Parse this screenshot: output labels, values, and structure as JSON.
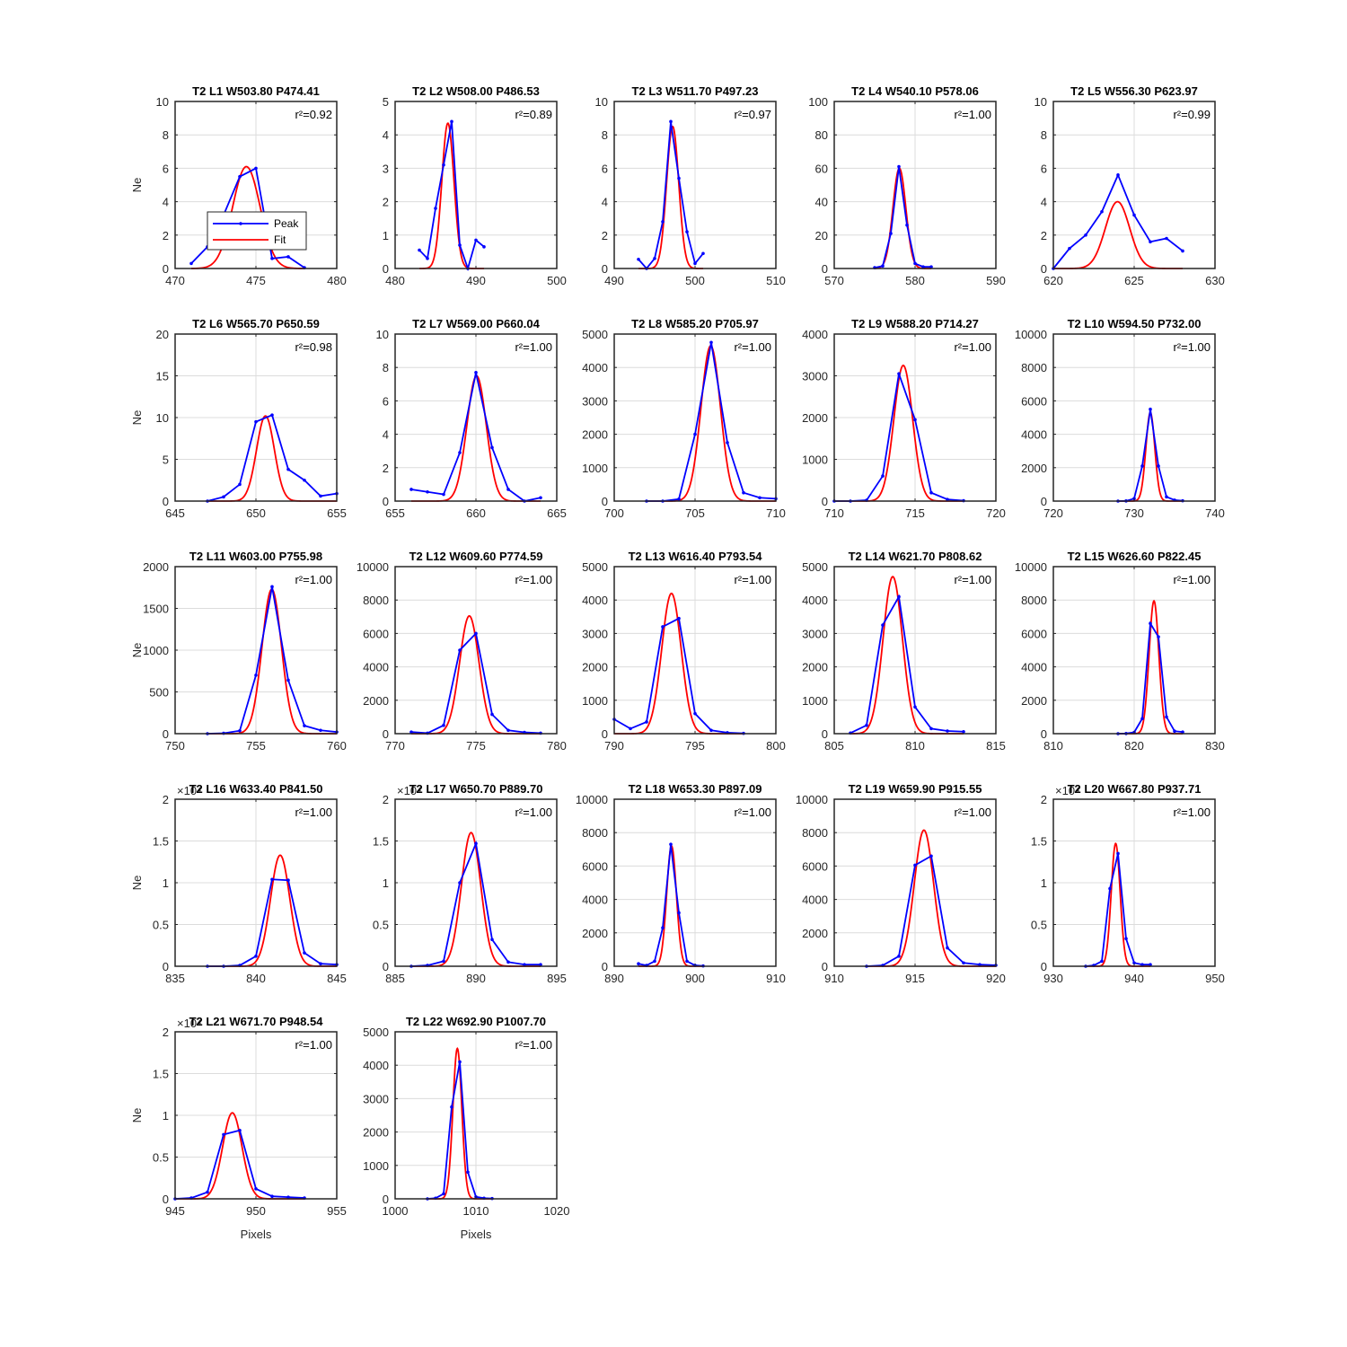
{
  "figure": {
    "background": "#ffffff"
  },
  "colors": {
    "peak": "#0000ff",
    "fit": "#ff0000",
    "grid": "#dcdcdc",
    "axes": "#262626"
  },
  "chart_data": [
    {
      "type": "line",
      "title": "T2 L1 W503.80 P474.41",
      "r2": "r²=0.92",
      "xlim": [
        470,
        480
      ],
      "ylim": [
        0,
        10
      ],
      "xticks": [
        470,
        475,
        480
      ],
      "yticks": [
        0,
        2,
        4,
        6,
        8,
        10
      ],
      "xlabel": "",
      "ylabel": "Ne",
      "exponent": "",
      "legend": {
        "position": "inside-left",
        "entries": [
          "Peak",
          "Fit"
        ]
      },
      "peak_x": [
        471,
        472,
        473,
        474,
        475,
        476,
        477,
        478
      ],
      "peak_y": [
        0.3,
        1.3,
        3.2,
        5.5,
        6.0,
        0.6,
        0.7,
        0.05
      ],
      "fit": {
        "amp": 6.1,
        "center": 474.41,
        "sigma": 0.85
      }
    },
    {
      "type": "line",
      "title": "T2 L2 W508.00 P486.53",
      "r2": "r²=0.89",
      "xlim": [
        480,
        500
      ],
      "ylim": [
        0,
        5
      ],
      "xticks": [
        480,
        490,
        500
      ],
      "yticks": [
        0,
        1,
        2,
        3,
        4,
        5
      ],
      "xlabel": "",
      "ylabel": "",
      "exponent": "",
      "peak_x": [
        483,
        484,
        485,
        486,
        487,
        488,
        489,
        490,
        491
      ],
      "peak_y": [
        0.55,
        0.3,
        1.8,
        3.1,
        4.4,
        0.7,
        0.0,
        0.85,
        0.65
      ],
      "fit": {
        "amp": 4.35,
        "center": 486.53,
        "sigma": 0.75
      }
    },
    {
      "type": "line",
      "title": "T2 L3 W511.70 P497.23",
      "r2": "r²=0.97",
      "xlim": [
        490,
        510
      ],
      "ylim": [
        0,
        10
      ],
      "xticks": [
        490,
        500,
        510
      ],
      "yticks": [
        0,
        2,
        4,
        6,
        8,
        10
      ],
      "xlabel": "",
      "ylabel": "",
      "exponent": "",
      "peak_x": [
        493,
        494,
        495,
        496,
        497,
        498,
        499,
        500,
        501
      ],
      "peak_y": [
        0.55,
        0.0,
        0.6,
        2.8,
        8.8,
        5.4,
        2.2,
        0.3,
        0.9
      ],
      "fit": {
        "amp": 8.5,
        "center": 497.23,
        "sigma": 0.75
      }
    },
    {
      "type": "line",
      "title": "T2 L4 W540.10 P578.06",
      "r2": "r²=1.00",
      "xlim": [
        570,
        590
      ],
      "ylim": [
        0,
        100
      ],
      "xticks": [
        570,
        580,
        590
      ],
      "yticks": [
        0,
        20,
        40,
        60,
        80,
        100
      ],
      "xlabel": "",
      "ylabel": "",
      "exponent": "",
      "peak_x": [
        575,
        576,
        577,
        578,
        579,
        580,
        581,
        582
      ],
      "peak_y": [
        0.5,
        1.5,
        21,
        61,
        26,
        3,
        1,
        1
      ],
      "fit": {
        "amp": 60,
        "center": 578.06,
        "sigma": 0.8
      }
    },
    {
      "type": "line",
      "title": "T2 L5 W556.30 P623.97",
      "r2": "r²=0.99",
      "xlim": [
        620,
        630
      ],
      "ylim": [
        0,
        10
      ],
      "xticks": [
        620,
        625,
        630
      ],
      "yticks": [
        0,
        2,
        4,
        6,
        8,
        10
      ],
      "xlabel": "",
      "ylabel": "",
      "exponent": "",
      "peak_x": [
        620,
        621,
        622,
        623,
        624,
        625,
        626,
        627,
        628
      ],
      "peak_y": [
        0.0,
        1.2,
        2.0,
        3.4,
        5.6,
        3.2,
        1.6,
        1.8,
        1.05
      ],
      "fit": {
        "amp": 4.0,
        "center": 623.97,
        "sigma": 0.75
      }
    },
    {
      "type": "line",
      "title": "T2 L6 W565.70 P650.59",
      "r2": "r²=0.98",
      "xlim": [
        645,
        655
      ],
      "ylim": [
        0,
        20
      ],
      "xticks": [
        645,
        650,
        655
      ],
      "yticks": [
        0,
        5,
        10,
        15,
        20
      ],
      "xlabel": "",
      "ylabel": "Ne",
      "exponent": "",
      "peak_x": [
        647,
        648,
        649,
        650,
        651,
        652,
        653,
        654,
        655
      ],
      "peak_y": [
        0.0,
        0.5,
        2.0,
        9.5,
        10.3,
        3.8,
        2.5,
        0.6,
        0.9
      ],
      "fit": {
        "amp": 10.2,
        "center": 650.59,
        "sigma": 0.55
      }
    },
    {
      "type": "line",
      "title": "T2 L7 W569.00 P660.04",
      "r2": "r²=1.00",
      "xlim": [
        655,
        665
      ],
      "ylim": [
        0,
        10
      ],
      "xticks": [
        655,
        660,
        665
      ],
      "yticks": [
        0,
        2,
        4,
        6,
        8,
        10
      ],
      "xlabel": "",
      "ylabel": "",
      "exponent": "",
      "peak_x": [
        656,
        657,
        658,
        659,
        660,
        661,
        662,
        663,
        664
      ],
      "peak_y": [
        0.7,
        0.55,
        0.4,
        2.9,
        7.7,
        3.2,
        0.7,
        0.0,
        0.2
      ],
      "fit": {
        "amp": 7.5,
        "center": 660.04,
        "sigma": 0.6
      }
    },
    {
      "type": "line",
      "title": "T2 L8 W585.20 P705.97",
      "r2": "r²=1.00",
      "xlim": [
        700,
        710
      ],
      "ylim": [
        0,
        5000
      ],
      "xticks": [
        700,
        705,
        710
      ],
      "yticks": [
        0,
        1000,
        2000,
        3000,
        4000,
        5000
      ],
      "xlabel": "",
      "ylabel": "",
      "exponent": "",
      "peak_x": [
        702,
        703,
        704,
        705,
        706,
        707,
        708,
        709,
        710
      ],
      "peak_y": [
        0,
        0,
        60,
        2000,
        4750,
        1750,
        250,
        100,
        70
      ],
      "fit": {
        "amp": 4650,
        "center": 705.97,
        "sigma": 0.6
      }
    },
    {
      "type": "line",
      "title": "T2 L9 W588.20 P714.27",
      "r2": "r²=1.00",
      "xlim": [
        710,
        720
      ],
      "ylim": [
        0,
        4000
      ],
      "xticks": [
        710,
        715,
        720
      ],
      "yticks": [
        0,
        1000,
        2000,
        3000,
        4000
      ],
      "xlabel": "",
      "ylabel": "",
      "exponent": "",
      "peak_x": [
        710,
        711,
        712,
        713,
        714,
        715,
        716,
        717,
        718
      ],
      "peak_y": [
        0,
        0,
        20,
        600,
        3050,
        1950,
        200,
        40,
        10
      ],
      "fit": {
        "amp": 3250,
        "center": 714.27,
        "sigma": 0.58
      }
    },
    {
      "type": "line",
      "title": "T2 L10 W594.50 P732.00",
      "r2": "r²=1.00",
      "xlim": [
        720,
        740
      ],
      "ylim": [
        0,
        10000
      ],
      "xticks": [
        720,
        730,
        740
      ],
      "yticks": [
        0,
        2000,
        4000,
        6000,
        8000,
        10000
      ],
      "xlabel": "",
      "ylabel": "",
      "exponent": "",
      "peak_x": [
        728,
        729,
        730,
        731,
        732,
        733,
        734,
        735,
        736
      ],
      "peak_y": [
        0,
        10,
        150,
        2100,
        5500,
        2100,
        250,
        60,
        20
      ],
      "fit": {
        "amp": 5300,
        "center": 732.0,
        "sigma": 0.55
      }
    },
    {
      "type": "line",
      "title": "T2 L11 W603.00 P755.98",
      "r2": "r²=1.00",
      "xlim": [
        750,
        760
      ],
      "ylim": [
        0,
        2000
      ],
      "xticks": [
        750,
        755,
        760
      ],
      "yticks": [
        0,
        500,
        1000,
        1500,
        2000
      ],
      "xlabel": "",
      "ylabel": "Ne",
      "exponent": "",
      "peak_x": [
        752,
        753,
        754,
        755,
        756,
        757,
        758,
        759,
        760
      ],
      "peak_y": [
        0,
        5,
        35,
        700,
        1760,
        640,
        95,
        40,
        20
      ],
      "fit": {
        "amp": 1730,
        "center": 755.98,
        "sigma": 0.6
      }
    },
    {
      "type": "line",
      "title": "T2 L12 W609.60 P774.59",
      "r2": "r²=1.00",
      "xlim": [
        770,
        780
      ],
      "ylim": [
        0,
        10000
      ],
      "xticks": [
        770,
        775,
        780
      ],
      "yticks": [
        0,
        2000,
        4000,
        6000,
        8000,
        10000
      ],
      "xlabel": "",
      "ylabel": "",
      "exponent": "",
      "peak_x": [
        771,
        772,
        773,
        774,
        775,
        776,
        777,
        778,
        779
      ],
      "peak_y": [
        100,
        30,
        500,
        5000,
        6000,
        1150,
        200,
        80,
        30
      ],
      "fit": {
        "amp": 7050,
        "center": 774.59,
        "sigma": 0.6
      }
    },
    {
      "type": "line",
      "title": "T2 L13 W616.40 P793.54",
      "r2": "r²=1.00",
      "xlim": [
        790,
        800
      ],
      "ylim": [
        0,
        5000
      ],
      "xticks": [
        790,
        795,
        800
      ],
      "yticks": [
        0,
        1000,
        2000,
        3000,
        4000,
        5000
      ],
      "xlabel": "",
      "ylabel": "",
      "exponent": "",
      "peak_x": [
        790,
        791,
        792,
        793,
        794,
        795,
        796,
        797,
        798
      ],
      "peak_y": [
        430,
        150,
        350,
        3200,
        3450,
        600,
        100,
        30,
        10
      ],
      "fit": {
        "amp": 4200,
        "center": 793.54,
        "sigma": 0.6
      }
    },
    {
      "type": "line",
      "title": "T2 L14 W621.70 P808.62",
      "r2": "r²=1.00",
      "xlim": [
        805,
        815
      ],
      "ylim": [
        0,
        5000
      ],
      "xticks": [
        805,
        810,
        815
      ],
      "yticks": [
        0,
        1000,
        2000,
        3000,
        4000,
        5000
      ],
      "xlabel": "",
      "ylabel": "",
      "exponent": "",
      "peak_x": [
        806,
        807,
        808,
        809,
        810,
        811,
        812,
        813
      ],
      "peak_y": [
        20,
        250,
        3250,
        4100,
        800,
        150,
        80,
        60
      ],
      "fit": {
        "amp": 4700,
        "center": 808.62,
        "sigma": 0.6
      }
    },
    {
      "type": "line",
      "title": "T2 L15 W626.60 P822.45",
      "r2": "r²=1.00",
      "xlim": [
        810,
        830
      ],
      "ylim": [
        0,
        10000
      ],
      "xticks": [
        810,
        820,
        830
      ],
      "yticks": [
        0,
        2000,
        4000,
        6000,
        8000,
        10000
      ],
      "xlabel": "",
      "ylabel": "",
      "exponent": "",
      "peak_x": [
        818,
        819,
        820,
        821,
        822,
        823,
        824,
        825,
        826
      ],
      "peak_y": [
        0,
        10,
        80,
        900,
        6600,
        5800,
        1000,
        150,
        100
      ],
      "fit": {
        "amp": 7950,
        "center": 822.45,
        "sigma": 0.6
      }
    },
    {
      "type": "line",
      "title": "T2 L16 W633.40 P841.50",
      "r2": "r²=1.00",
      "xlim": [
        835,
        845
      ],
      "ylim": [
        0,
        2
      ],
      "xticks": [
        835,
        840,
        845
      ],
      "yticks": [
        0,
        0.5,
        1,
        1.5,
        2
      ],
      "xlabel": "",
      "ylabel": "Ne",
      "exponent": "×10⁴",
      "peak_x": [
        837,
        838,
        839,
        840,
        841,
        842,
        843,
        844,
        845
      ],
      "peak_y": [
        0,
        0,
        0.01,
        0.12,
        1.04,
        1.03,
        0.16,
        0.03,
        0.02
      ],
      "fit": {
        "amp": 1.33,
        "center": 841.5,
        "sigma": 0.6
      }
    },
    {
      "type": "line",
      "title": "T2 L17 W650.70 P889.70",
      "r2": "r²=1.00",
      "xlim": [
        885,
        895
      ],
      "ylim": [
        0,
        2
      ],
      "xticks": [
        885,
        890,
        895
      ],
      "yticks": [
        0,
        0.5,
        1,
        1.5,
        2
      ],
      "xlabel": "",
      "ylabel": "",
      "exponent": "×10⁴",
      "peak_x": [
        886,
        887,
        888,
        889,
        890,
        891,
        892,
        893,
        894
      ],
      "peak_y": [
        0,
        0.01,
        0.06,
        1.0,
        1.47,
        0.32,
        0.05,
        0.02,
        0.02
      ],
      "fit": {
        "amp": 1.6,
        "center": 889.7,
        "sigma": 0.6
      }
    },
    {
      "type": "line",
      "title": "T2 L18 W653.30 P897.09",
      "r2": "r²=1.00",
      "xlim": [
        890,
        910
      ],
      "ylim": [
        0,
        10000
      ],
      "xticks": [
        890,
        900,
        910
      ],
      "yticks": [
        0,
        2000,
        4000,
        6000,
        8000,
        10000
      ],
      "xlabel": "",
      "ylabel": "",
      "exponent": "",
      "peak_x": [
        893,
        894,
        895,
        896,
        897,
        898,
        899,
        900,
        901
      ],
      "peak_y": [
        150,
        50,
        300,
        2300,
        7300,
        3200,
        300,
        50,
        20
      ],
      "fit": {
        "amp": 7200,
        "center": 897.09,
        "sigma": 0.6
      }
    },
    {
      "type": "line",
      "title": "T2 L19 W659.90 P915.55",
      "r2": "r²=1.00",
      "xlim": [
        910,
        920
      ],
      "ylim": [
        0,
        10000
      ],
      "xticks": [
        910,
        915,
        920
      ],
      "yticks": [
        0,
        2000,
        4000,
        6000,
        8000,
        10000
      ],
      "xlabel": "",
      "ylabel": "",
      "exponent": "",
      "peak_x": [
        912,
        913,
        914,
        915,
        916,
        917,
        918,
        919,
        920
      ],
      "peak_y": [
        0,
        50,
        600,
        6050,
        6600,
        1100,
        200,
        100,
        60
      ],
      "fit": {
        "amp": 8150,
        "center": 915.55,
        "sigma": 0.6
      }
    },
    {
      "type": "line",
      "title": "T2 L20 W667.80 P937.71",
      "r2": "r²=1.00",
      "xlim": [
        930,
        950
      ],
      "ylim": [
        0,
        2
      ],
      "xticks": [
        930,
        940,
        950
      ],
      "yticks": [
        0,
        0.5,
        1,
        1.5,
        2
      ],
      "xlabel": "",
      "ylabel": "",
      "exponent": "×10⁴",
      "peak_x": [
        934,
        935,
        936,
        937,
        938,
        939,
        940,
        941,
        942
      ],
      "peak_y": [
        0,
        0.01,
        0.06,
        0.93,
        1.35,
        0.33,
        0.04,
        0.02,
        0.02
      ],
      "fit": {
        "amp": 1.47,
        "center": 937.71,
        "sigma": 0.55
      }
    },
    {
      "type": "line",
      "title": "T2 L21 W671.70 P948.54",
      "r2": "r²=1.00",
      "xlim": [
        945,
        955
      ],
      "ylim": [
        0,
        2
      ],
      "xticks": [
        945,
        950,
        955
      ],
      "yticks": [
        0,
        0.5,
        1,
        1.5,
        2
      ],
      "xlabel": "Pixels",
      "ylabel": "Ne",
      "exponent": "×10⁴",
      "peak_x": [
        945,
        946,
        947,
        948,
        949,
        950,
        951,
        952,
        953
      ],
      "peak_y": [
        0,
        0.01,
        0.08,
        0.77,
        0.82,
        0.12,
        0.03,
        0.02,
        0.01
      ],
      "fit": {
        "amp": 1.03,
        "center": 948.54,
        "sigma": 0.6
      }
    },
    {
      "type": "line",
      "title": "T2 L22 W692.90 P1007.70",
      "r2": "r²=1.00",
      "xlim": [
        1000,
        1020
      ],
      "ylim": [
        0,
        5000
      ],
      "xticks": [
        1000,
        1010,
        1020
      ],
      "yticks": [
        0,
        1000,
        2000,
        3000,
        4000,
        5000
      ],
      "xlabel": "Pixels",
      "ylabel": "",
      "exponent": "",
      "peak_x": [
        1004,
        1005,
        1006,
        1007,
        1008,
        1009,
        1010,
        1011,
        1012
      ],
      "peak_y": [
        0,
        20,
        150,
        2750,
        4100,
        800,
        60,
        20,
        10
      ],
      "fit": {
        "amp": 4500,
        "center": 1007.7,
        "sigma": 0.55
      }
    }
  ]
}
